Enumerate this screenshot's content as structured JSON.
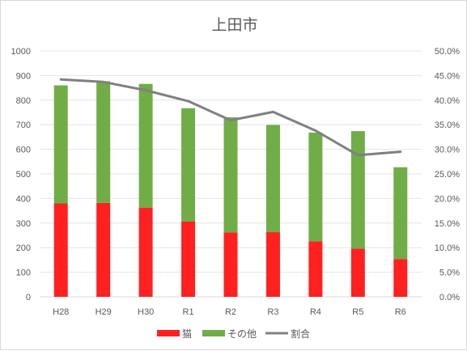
{
  "chart_data": {
    "type": "bar",
    "title": "上田市",
    "xlabel": "",
    "ylabel": "",
    "categories": [
      "H28",
      "H29",
      "H30",
      "R1",
      "R2",
      "R3",
      "R4",
      "R5",
      "R6"
    ],
    "series": [
      {
        "name": "猫",
        "type": "bar",
        "stack": "total",
        "axis": "left",
        "color": "#ff2020",
        "values": [
          380,
          382,
          363,
          307,
          262,
          263,
          226,
          196,
          154
        ]
      },
      {
        "name": "その他",
        "type": "bar",
        "stack": "total",
        "axis": "left",
        "color": "#70ad47",
        "values": [
          480,
          495,
          503,
          460,
          468,
          436,
          442,
          478,
          373
        ]
      },
      {
        "name": "割合",
        "type": "line",
        "axis": "right",
        "color": "#808080",
        "values": [
          0.442,
          0.437,
          0.42,
          0.398,
          0.359,
          0.376,
          0.338,
          0.288,
          0.295
        ]
      }
    ],
    "ylim": [
      0,
      1000
    ],
    "yticks": [
      "0",
      "100",
      "200",
      "300",
      "400",
      "500",
      "600",
      "700",
      "800",
      "900",
      "1000"
    ],
    "y2lim": [
      0,
      0.5
    ],
    "y2ticks": [
      "0.0%",
      "5.0%",
      "10.0%",
      "15.0%",
      "20.0%",
      "25.0%",
      "30.0%",
      "35.0%",
      "40.0%",
      "45.0%",
      "50.0%"
    ],
    "grid": true,
    "legend": "bottom"
  }
}
